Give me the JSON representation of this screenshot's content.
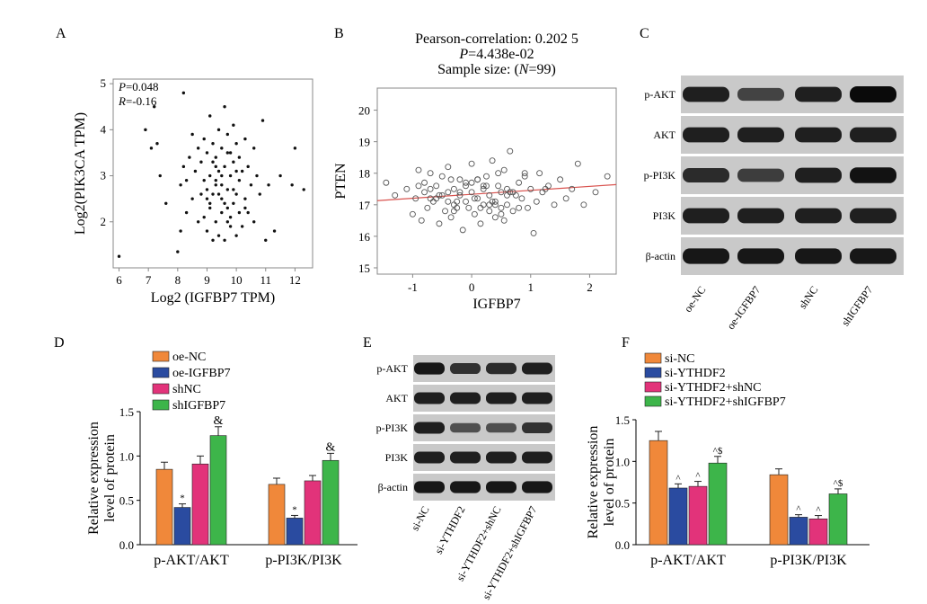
{
  "chart_data": [
    {
      "panel": "A",
      "type": "scatter",
      "xlabel": "Log2 (IGFBP7 TPM)",
      "ylabel": "Log2(PIK3CA TPM)",
      "xlim": [
        5.8,
        12.6
      ],
      "ylim": [
        1.0,
        5.1
      ],
      "xticks": [
        "6",
        "7",
        "8",
        "9",
        "10",
        "11",
        "12"
      ],
      "yticks": [
        "2",
        "3",
        "4",
        "5"
      ],
      "annotations": [
        "P=0.048",
        "R=-0.16"
      ],
      "x": [
        6.0,
        6.9,
        7.1,
        7.2,
        7.3,
        7.4,
        7.6,
        8.0,
        8.1,
        8.1,
        8.2,
        8.2,
        8.3,
        8.3,
        8.4,
        8.5,
        8.5,
        8.6,
        8.7,
        8.7,
        8.8,
        8.8,
        8.9,
        8.9,
        9.0,
        9.0,
        9.0,
        9.1,
        9.1,
        9.1,
        9.2,
        9.2,
        9.2,
        9.3,
        9.3,
        9.3,
        9.4,
        9.4,
        9.4,
        9.5,
        9.5,
        9.5,
        9.6,
        9.6,
        9.6,
        9.7,
        9.7,
        9.7,
        9.8,
        9.8,
        9.8,
        9.9,
        9.9,
        9.9,
        10.0,
        10.0,
        10.0,
        10.1,
        10.1,
        10.2,
        10.2,
        10.3,
        10.3,
        10.4,
        10.4,
        10.5,
        10.6,
        10.6,
        10.7,
        10.8,
        10.9,
        11.0,
        11.1,
        11.3,
        11.5,
        11.9,
        12.0,
        12.3,
        8.9,
        9.1,
        9.3,
        9.5,
        9.7,
        9.9,
        10.1,
        9.2,
        9.6,
        10.0,
        9.4,
        9.8,
        9.0,
        9.5,
        10.3,
        9.7,
        9.3
      ],
      "y": [
        1.25,
        4.0,
        3.6,
        4.5,
        3.7,
        3.0,
        2.4,
        1.35,
        1.8,
        2.8,
        3.2,
        4.8,
        2.2,
        2.9,
        3.4,
        2.5,
        3.9,
        3.1,
        2.0,
        3.6,
        2.6,
        3.3,
        2.1,
        3.8,
        1.8,
        2.7,
        3.5,
        2.3,
        3.0,
        4.3,
        1.6,
        2.6,
        3.7,
        2.0,
        2.9,
        3.4,
        1.7,
        3.1,
        4.0,
        2.2,
        2.8,
        3.6,
        1.6,
        3.2,
        4.5,
        2.0,
        2.7,
        3.9,
        1.9,
        3.0,
        3.5,
        2.4,
        3.3,
        4.1,
        1.7,
        2.6,
        3.7,
        2.9,
        3.4,
        1.9,
        3.1,
        2.5,
        3.8,
        2.2,
        3.2,
        2.8,
        2.0,
        3.6,
        3.0,
        2.6,
        4.2,
        1.6,
        2.8,
        1.8,
        3.0,
        2.8,
        3.6,
        2.7,
        2.9,
        2.4,
        3.2,
        2.5,
        2.3,
        2.7,
        2.2,
        3.3,
        2.4,
        3.1,
        2.6,
        2.1,
        2.5,
        3.0,
        2.3,
        3.5,
        2.8
      ]
    },
    {
      "panel": "B",
      "type": "scatter",
      "title_lines": [
        "Pearson-correlation: 0.202 5",
        "P=4.438e-02",
        "Sample size: (N=99)"
      ],
      "xlabel": "IGFBP7",
      "ylabel": "PTEN",
      "xlim": [
        -1.6,
        2.45
      ],
      "ylim": [
        14.8,
        20.7
      ],
      "xticks": [
        "-1",
        "0",
        "1",
        "2"
      ],
      "yticks": [
        "15",
        "16",
        "17",
        "18",
        "19",
        "20"
      ],
      "regression": {
        "x": [
          -1.6,
          2.45
        ],
        "y": [
          17.13,
          17.64
        ]
      },
      "x": [
        -1.45,
        -1.3,
        -1.1,
        -1.0,
        -0.95,
        -0.9,
        -0.85,
        -0.8,
        -0.8,
        -0.75,
        -0.7,
        -0.7,
        -0.65,
        -0.6,
        -0.55,
        -0.55,
        -0.5,
        -0.45,
        -0.4,
        -0.4,
        -0.35,
        -0.3,
        -0.3,
        -0.25,
        -0.2,
        -0.2,
        -0.15,
        -0.1,
        -0.1,
        -0.05,
        0.0,
        0.0,
        0.05,
        0.1,
        0.1,
        0.15,
        0.2,
        0.2,
        0.25,
        0.3,
        0.3,
        0.35,
        0.4,
        0.4,
        0.45,
        0.5,
        0.5,
        0.55,
        0.6,
        0.6,
        0.65,
        0.7,
        0.75,
        0.8,
        0.85,
        0.9,
        0.95,
        1.0,
        1.05,
        1.1,
        1.15,
        1.2,
        1.3,
        1.4,
        1.5,
        1.6,
        1.7,
        1.8,
        1.9,
        2.1,
        2.3,
        -0.9,
        -0.6,
        -0.3,
        0.0,
        0.3,
        0.6,
        0.9,
        -0.4,
        0.2,
        0.5,
        -0.2,
        0.1,
        0.4,
        0.7,
        -0.7,
        -0.1,
        0.35,
        0.8,
        1.25,
        -0.5,
        0.15,
        0.45,
        -0.25,
        0.25,
        0.55,
        0.05,
        -0.35,
        0.65
      ],
      "y": [
        17.7,
        17.3,
        17.5,
        16.7,
        17.2,
        18.1,
        16.5,
        17.4,
        17.7,
        16.9,
        17.5,
        18.0,
        17.1,
        17.6,
        16.4,
        17.3,
        17.9,
        16.8,
        17.4,
        18.2,
        16.6,
        17.0,
        17.5,
        16.9,
        17.3,
        17.8,
        16.2,
        17.1,
        17.6,
        16.9,
        17.4,
        18.3,
        16.7,
        17.2,
        17.8,
        16.4,
        17.0,
        17.5,
        17.9,
        16.8,
        17.3,
        18.4,
        16.6,
        17.1,
        17.6,
        16.9,
        17.4,
        18.1,
        17.0,
        17.5,
        18.7,
        16.8,
        17.3,
        17.7,
        17.2,
        17.9,
        16.9,
        17.5,
        16.1,
        17.1,
        18.0,
        17.4,
        17.6,
        17.0,
        17.8,
        17.2,
        17.5,
        18.3,
        17.0,
        17.4,
        17.9,
        17.6,
        17.2,
        16.8,
        17.7,
        17.0,
        17.3,
        18.0,
        17.1,
        17.6,
        16.7,
        17.4,
        17.8,
        17.0,
        17.4,
        17.2,
        17.7,
        17.1,
        16.9,
        17.5,
        17.3,
        16.9,
        18.0,
        17.1,
        17.6,
        16.5,
        17.2,
        17.8,
        17.4
      ]
    },
    {
      "panel": "C",
      "type": "western_blot",
      "rows": [
        "p-AKT",
        "AKT",
        "p-PI3K",
        "PI3K",
        "β-actin"
      ],
      "lanes": [
        "oe-NC",
        "oe-IGFBP7",
        "shNC",
        "shIGFBP7"
      ],
      "band_strength": [
        [
          0.85,
          0.55,
          0.85,
          1.0
        ],
        [
          0.85,
          0.85,
          0.85,
          0.85
        ],
        [
          0.75,
          0.6,
          0.85,
          0.95
        ],
        [
          0.85,
          0.85,
          0.85,
          0.85
        ],
        [
          0.9,
          0.9,
          0.9,
          0.9
        ]
      ]
    },
    {
      "panel": "D",
      "type": "bar",
      "ylabel": "Relative expression level of protein",
      "ylim": [
        0.0,
        1.5
      ],
      "yticks": [
        "0.0",
        "0.5",
        "1.0",
        "1.5"
      ],
      "categories": [
        "p-AKT/AKT",
        "p-PI3K/PI3K"
      ],
      "series": [
        {
          "name": "oe-NC",
          "color": "#F0883A",
          "values": [
            0.85,
            0.68
          ],
          "errors": [
            0.08,
            0.07
          ],
          "marks": [
            "",
            ""
          ]
        },
        {
          "name": "oe-IGFBP7",
          "color": "#2A4BA0",
          "values": [
            0.42,
            0.3
          ],
          "errors": [
            0.04,
            0.03
          ],
          "marks": [
            "*",
            "*"
          ]
        },
        {
          "name": "shNC",
          "color": "#E2337A",
          "values": [
            0.91,
            0.72
          ],
          "errors": [
            0.09,
            0.06
          ],
          "marks": [
            "",
            ""
          ]
        },
        {
          "name": "shIGFBP7",
          "color": "#3DB54A",
          "values": [
            1.23,
            0.95
          ],
          "errors": [
            0.1,
            0.08
          ],
          "marks": [
            "&",
            "&"
          ]
        }
      ]
    },
    {
      "panel": "E",
      "type": "western_blot",
      "rows": [
        "p-AKT",
        "AKT",
        "p-PI3K",
        "PI3K",
        "β-actin"
      ],
      "lanes": [
        "si-NC",
        "si-YTHDF2",
        "si-YTHDF2+shNC",
        "si-YTHDF2+shIGFBP7"
      ],
      "band_strength": [
        [
          0.9,
          0.7,
          0.75,
          0.85
        ],
        [
          0.85,
          0.85,
          0.85,
          0.85
        ],
        [
          0.85,
          0.45,
          0.45,
          0.7
        ],
        [
          0.85,
          0.85,
          0.85,
          0.85
        ],
        [
          0.9,
          0.9,
          0.9,
          0.9
        ]
      ]
    },
    {
      "panel": "F",
      "type": "bar",
      "ylabel": "Relative expression level of protein",
      "ylim": [
        0.0,
        1.5
      ],
      "yticks": [
        "0.0",
        "0.5",
        "1.0",
        "1.5"
      ],
      "categories": [
        "p-AKT/AKT",
        "p-PI3K/PI3K"
      ],
      "series": [
        {
          "name": "si-NC",
          "color": "#F0883A",
          "values": [
            1.25,
            0.84
          ],
          "errors": [
            0.11,
            0.07
          ],
          "marks": [
            "",
            ""
          ]
        },
        {
          "name": "si-YTHDF2",
          "color": "#2A4BA0",
          "values": [
            0.68,
            0.33
          ],
          "errors": [
            0.05,
            0.03
          ],
          "marks": [
            "^",
            "^"
          ]
        },
        {
          "name": "si-YTHDF2+shNC",
          "color": "#E2337A",
          "values": [
            0.7,
            0.31
          ],
          "errors": [
            0.06,
            0.04
          ],
          "marks": [
            "^",
            "^"
          ]
        },
        {
          "name": "si-YTHDF2+shIGFBP7",
          "color": "#3DB54A",
          "values": [
            0.98,
            0.61
          ],
          "errors": [
            0.08,
            0.06
          ],
          "marks": [
            "^$",
            "^$"
          ]
        }
      ]
    }
  ]
}
